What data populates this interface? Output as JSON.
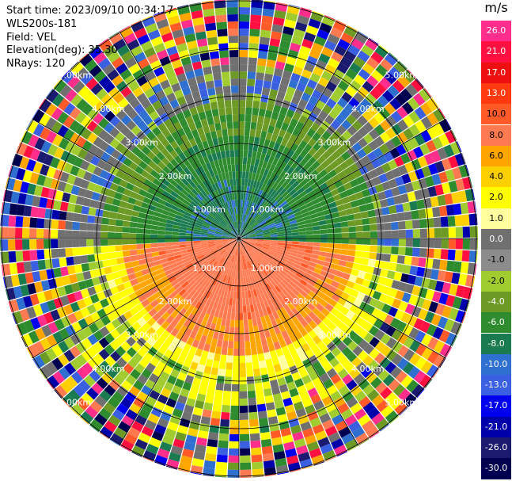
{
  "info": {
    "start_time": "Start time: 2023/09/10 00:34:17",
    "site": "WLS200s-181",
    "field": "Field: VEL",
    "elevation": "Elevation(deg): 35.30",
    "nrays": "NRays: 120"
  },
  "range_labels": [
    "1.00km",
    "2.00km",
    "3.00km",
    "4.00km",
    "5.00km"
  ],
  "colorbar": {
    "unit": "m/s",
    "levels": [
      "26.0",
      "21.0",
      "17.0",
      "13.0",
      "10.0",
      "8.0",
      "6.0",
      "4.0",
      "2.0",
      "1.0",
      "0.0",
      "-1.0",
      "-2.0",
      "-4.0",
      "-6.0",
      "-8.0",
      "-10.0",
      "-13.0",
      "-17.0",
      "-21.0",
      "-26.0",
      "-30.0"
    ],
    "colors": [
      "#ff2d8c",
      "#ff1040",
      "#ee1010",
      "#ff3a10",
      "#ff5a28",
      "#ff7a50",
      "#ffa500",
      "#ffd000",
      "#ffff00",
      "#ffffa0",
      "#707070",
      "#8c8c8c",
      "#a0cc30",
      "#6c9a24",
      "#2e8b2e",
      "#1a7a50",
      "#2f6fcf",
      "#3a5fe0",
      "#0000ee",
      "#0000aa",
      "#1a1a70",
      "#000050"
    ]
  }
}
